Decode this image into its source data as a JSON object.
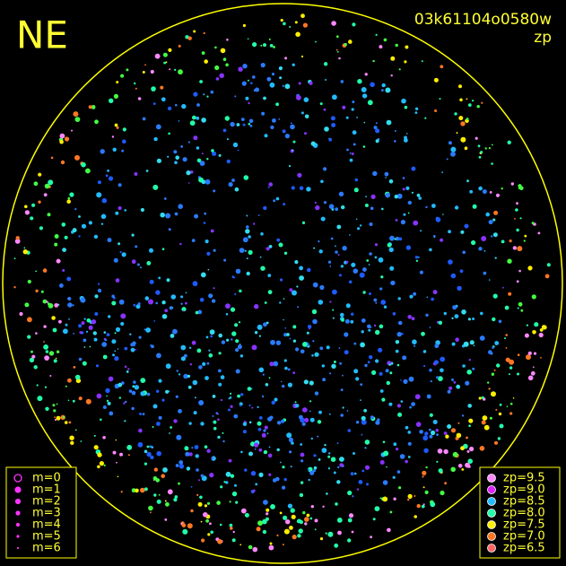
{
  "corner_label": "NE",
  "header": {
    "frame_id": "03k61104o0580w",
    "quantity": "zp"
  },
  "magnitude_legend": {
    "items": [
      "m=0",
      "m=1",
      "m=2",
      "m=3",
      "m=4",
      "m=5",
      "m=6"
    ],
    "color": "#ff33ff"
  },
  "zp_legend": {
    "items": [
      {
        "label": "zp=9.5",
        "color": "#ff88ff"
      },
      {
        "label": "zp=9.0",
        "color": "#dd22ff"
      },
      {
        "label": "zp=8.5",
        "color": "#22bbff"
      },
      {
        "label": "zp=8.0",
        "color": "#22ffaa"
      },
      {
        "label": "zp=7.5",
        "color": "#ffee00"
      },
      {
        "label": "zp=7.0",
        "color": "#ff7722"
      },
      {
        "label": "zp=6.5",
        "color": "#ff6666"
      }
    ]
  }
}
